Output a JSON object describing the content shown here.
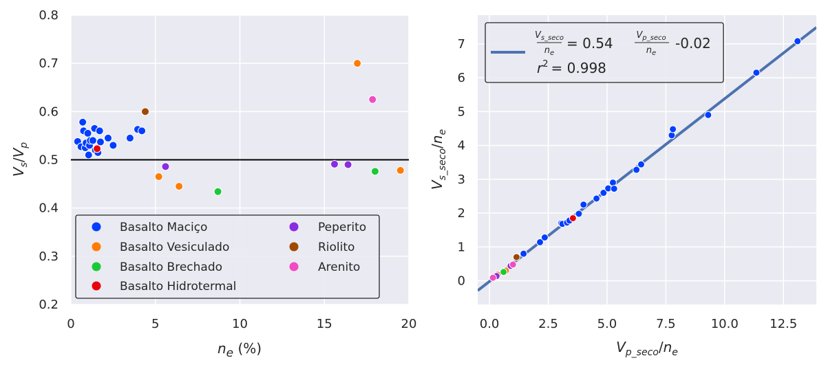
{
  "chart_data": [
    {
      "type": "scatter",
      "xlabel": {
        "base": "n",
        "sub": "e",
        "suffix": " (%)"
      },
      "ylabel": {
        "a": "V",
        "a_sub": "s",
        "slash": "/",
        "b": "V",
        "b_sub": "p"
      },
      "xlim": [
        0,
        20
      ],
      "ylim": [
        0.2,
        0.8
      ],
      "xticks": [
        0,
        5,
        10,
        15,
        20
      ],
      "xtick_labels": [
        "0",
        "5",
        "10",
        "15",
        "20"
      ],
      "yticks": [
        0.2,
        0.3,
        0.4,
        0.5,
        0.6,
        0.7,
        0.8
      ],
      "ytick_labels": [
        "0.2",
        "0.3",
        "0.4",
        "0.5",
        "0.6",
        "0.7",
        "0.8"
      ],
      "grid": true,
      "hline": 0.5,
      "legend_position": "lower-left",
      "series": [
        {
          "name": "Basalto Maciço",
          "color": "#023eff",
          "points": [
            [
              0.4,
              0.538
            ],
            [
              0.6,
              0.527
            ],
            [
              0.7,
              0.578
            ],
            [
              0.75,
              0.56
            ],
            [
              0.85,
              0.525
            ],
            [
              0.9,
              0.535
            ],
            [
              1.0,
              0.555
            ],
            [
              1.05,
              0.51
            ],
            [
              1.1,
              0.53
            ],
            [
              1.15,
              0.54
            ],
            [
              1.3,
              0.54
            ],
            [
              1.4,
              0.565
            ],
            [
              1.45,
              0.52
            ],
            [
              1.6,
              0.515
            ],
            [
              1.7,
              0.56
            ],
            [
              1.75,
              0.537
            ],
            [
              2.2,
              0.545
            ],
            [
              2.5,
              0.53
            ],
            [
              3.5,
              0.545
            ],
            [
              3.95,
              0.563
            ],
            [
              4.2,
              0.56
            ]
          ]
        },
        {
          "name": "Basalto Vesiculado",
          "color": "#ff7c00",
          "points": [
            [
              5.2,
              0.465
            ],
            [
              6.4,
              0.445
            ],
            [
              16.95,
              0.7
            ],
            [
              19.5,
              0.478
            ]
          ]
        },
        {
          "name": "Basalto Brechado",
          "color": "#1ac938",
          "points": [
            [
              8.7,
              0.434
            ],
            [
              18.0,
              0.476
            ]
          ]
        },
        {
          "name": "Basalto Hidrotermal",
          "color": "#e8000b",
          "points": [
            [
              1.55,
              0.523
            ]
          ]
        },
        {
          "name": "Peperito",
          "color": "#8b2be2",
          "points": [
            [
              5.6,
              0.486
            ],
            [
              15.6,
              0.491
            ],
            [
              16.4,
              0.49
            ]
          ]
        },
        {
          "name": "Riolito",
          "color": "#9f4800",
          "points": [
            [
              4.4,
              0.6
            ]
          ]
        },
        {
          "name": "Arenito",
          "color": "#f14cc1",
          "points": [
            [
              17.85,
              0.625
            ]
          ]
        }
      ]
    },
    {
      "type": "scatter",
      "xlabel": {
        "a": "V",
        "a_sub": "p_seco",
        "slash": "/",
        "b": "n",
        "b_sub": "e"
      },
      "ylabel": {
        "a": "V",
        "a_sub": "s_seco",
        "slash": "/",
        "b": "n",
        "b_sub": "e"
      },
      "xlim": [
        -0.5,
        13.9
      ],
      "ylim": [
        -0.7,
        7.85
      ],
      "xticks": [
        0,
        2.5,
        5,
        7.5,
        10,
        12.5
      ],
      "xtick_labels": [
        "0.0",
        "2.5",
        "5.0",
        "7.5",
        "10.0",
        "12.5"
      ],
      "yticks": [
        0,
        1,
        2,
        3,
        4,
        5,
        6,
        7
      ],
      "ytick_labels": [
        "0",
        "1",
        "2",
        "3",
        "4",
        "5",
        "6",
        "7"
      ],
      "grid": true,
      "fit_line": {
        "slope": 0.54,
        "intercept": -0.02,
        "color": "#4c72b0"
      },
      "legend_position": "upper-left",
      "legend": {
        "eq_lhs_num": "V",
        "eq_lhs_num_sub": "s_seco",
        "eq_lhs_den": "n",
        "eq_lhs_den_sub": "e",
        "eq_mid": "= 0.54",
        "eq_rhs_num": "V",
        "eq_rhs_num_sub": "p_seco",
        "eq_rhs_den": "n",
        "eq_rhs_den_sub": "e",
        "eq_end": "-0.02",
        "r2_label": "r",
        "r2_sup": "2",
        "r2_value": "= 0.998"
      },
      "series": [
        {
          "color": "#023eff",
          "points": [
            [
              1.45,
              0.8
            ],
            [
              2.15,
              1.14
            ],
            [
              2.35,
              1.28
            ],
            [
              3.05,
              1.7
            ],
            [
              3.1,
              1.68
            ],
            [
              3.3,
              1.72
            ],
            [
              3.4,
              1.78
            ],
            [
              3.8,
              1.98
            ],
            [
              4.0,
              2.25
            ],
            [
              4.55,
              2.43
            ],
            [
              4.85,
              2.6
            ],
            [
              5.05,
              2.73
            ],
            [
              5.25,
              2.9
            ],
            [
              5.3,
              2.72
            ],
            [
              6.25,
              3.28
            ],
            [
              6.45,
              3.44
            ],
            [
              7.75,
              4.3
            ],
            [
              7.8,
              4.48
            ],
            [
              9.3,
              4.9
            ],
            [
              11.35,
              6.15
            ],
            [
              13.1,
              7.08
            ]
          ]
        },
        {
          "color": "#ff7c00",
          "points": [
            [
              0.35,
              0.18
            ],
            [
              0.7,
              0.3
            ]
          ]
        },
        {
          "color": "#1ac938",
          "points": [
            [
              0.6,
              0.26
            ]
          ]
        },
        {
          "color": "#e8000b",
          "points": [
            [
              3.55,
              1.85
            ]
          ]
        },
        {
          "color": "#8b2be2",
          "points": [
            [
              0.3,
              0.14
            ],
            [
              0.9,
              0.44
            ]
          ]
        },
        {
          "color": "#9f4800",
          "points": [
            [
              1.15,
              0.7
            ]
          ]
        },
        {
          "color": "#f14cc1",
          "points": [
            [
              0.15,
              0.09
            ],
            [
              1.0,
              0.48
            ]
          ]
        }
      ]
    }
  ]
}
